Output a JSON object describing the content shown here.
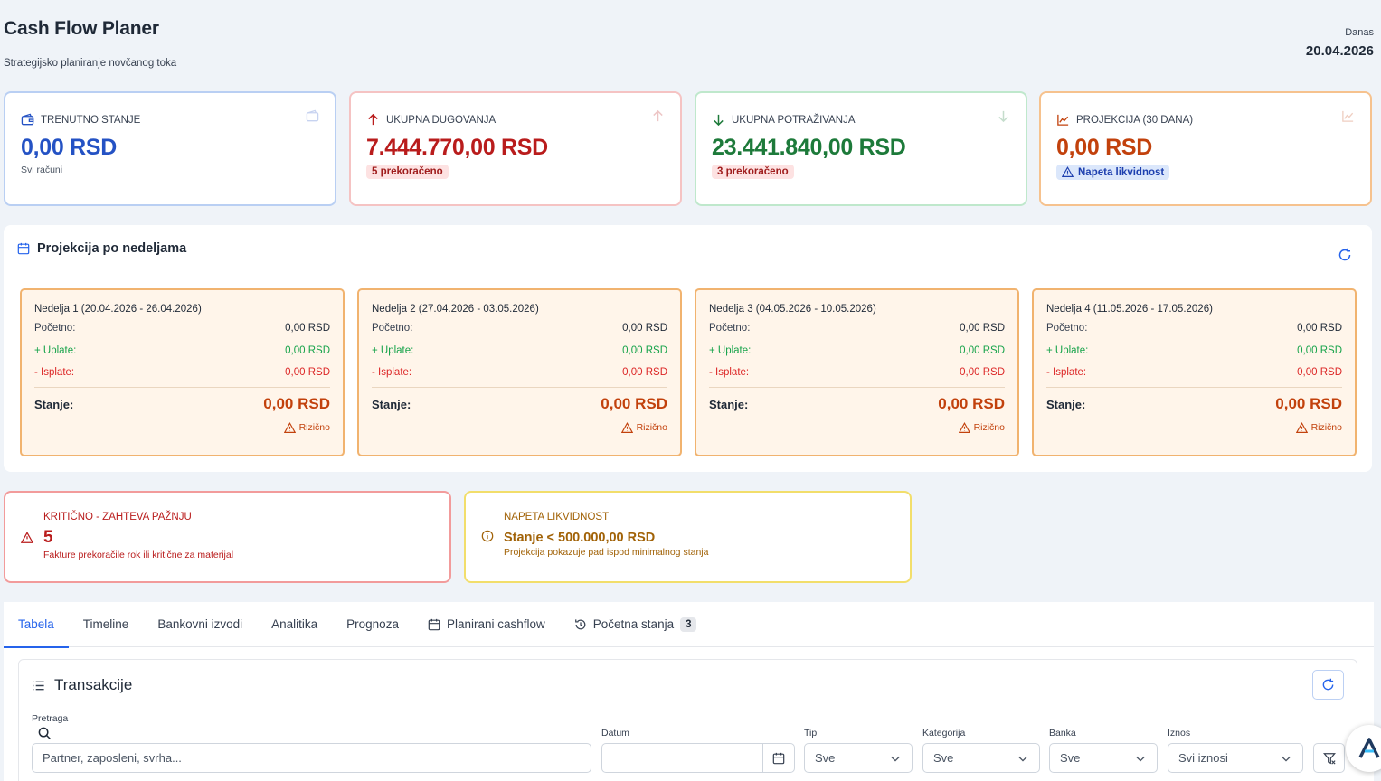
{
  "header": {
    "title": "Cash Flow Planer",
    "subtitle": "Strategijsko planiranje novčanog toka",
    "date_label": "Danas",
    "date_value": "20.04.2026"
  },
  "stats": {
    "current": {
      "label": "TRENUTNO STANJE",
      "value": "0,00 RSD",
      "sub": "Svi računi",
      "color": "#2452c4"
    },
    "debts": {
      "label": "UKUPNA DUGOVANJA",
      "value": "7.444.770,00 RSD",
      "badge": "5 prekoračeno",
      "color": "#b91c1c"
    },
    "receivables": {
      "label": "UKUPNA POTRAŽIVANJA",
      "value": "23.441.840,00 RSD",
      "badge": "3 prekoračeno",
      "color": "#1d7a3a"
    },
    "projection": {
      "label": "PROJEKCIJA (30 DANA)",
      "value": "0,00 RSD",
      "badge": "Napeta likvidnost",
      "color": "#c2410c"
    }
  },
  "weekly": {
    "title": "Projekcija po nedeljama",
    "labels": {
      "start": "Početno:",
      "in": "+ Uplate:",
      "out": "- Isplate:",
      "balance": "Stanje:",
      "risk": "Rizično"
    },
    "weeks": [
      {
        "title": "Nedelja 1 (20.04.2026 - 26.04.2026)",
        "start": "0,00 RSD",
        "in": "0,00 RSD",
        "out": "0,00 RSD",
        "balance": "0,00 RSD"
      },
      {
        "title": "Nedelja 2 (27.04.2026 - 03.05.2026)",
        "start": "0,00 RSD",
        "in": "0,00 RSD",
        "out": "0,00 RSD",
        "balance": "0,00 RSD"
      },
      {
        "title": "Nedelja 3 (04.05.2026 - 10.05.2026)",
        "start": "0,00 RSD",
        "in": "0,00 RSD",
        "out": "0,00 RSD",
        "balance": "0,00 RSD"
      },
      {
        "title": "Nedelja 4 (11.05.2026 - 17.05.2026)",
        "start": "0,00 RSD",
        "in": "0,00 RSD",
        "out": "0,00 RSD",
        "balance": "0,00 RSD"
      }
    ]
  },
  "alerts": {
    "critical": {
      "title": "KRITIČNO - ZAHTEVA PAŽNJU",
      "value": "5",
      "desc": "Fakture prekoračile rok ili kritične za materijal"
    },
    "liquidity": {
      "title": "NAPETA LIKVIDNOST",
      "value": "Stanje < 500.000,00 RSD",
      "desc": "Projekcija pokazuje pad ispod minimalnog stanja"
    }
  },
  "tabs": [
    {
      "label": "Tabela",
      "active": true
    },
    {
      "label": "Timeline"
    },
    {
      "label": "Bankovni izvodi"
    },
    {
      "label": "Analitika"
    },
    {
      "label": "Prognoza"
    },
    {
      "label": "Planirani cashflow",
      "icon": "calendar-icon"
    },
    {
      "label": "Početna stanja",
      "icon": "history-icon",
      "badge": "3"
    }
  ],
  "transactions": {
    "title": "Transakcije",
    "search_label": "Pretraga",
    "search_placeholder": "Partner, zaposleni, svrha...",
    "date_label": "Datum",
    "type_label": "Tip",
    "type_value": "Sve",
    "category_label": "Kategorija",
    "category_value": "Sve",
    "bank_label": "Banka",
    "bank_value": "Sve",
    "amount_label": "Iznos",
    "amount_value": "Svi iznosi"
  }
}
